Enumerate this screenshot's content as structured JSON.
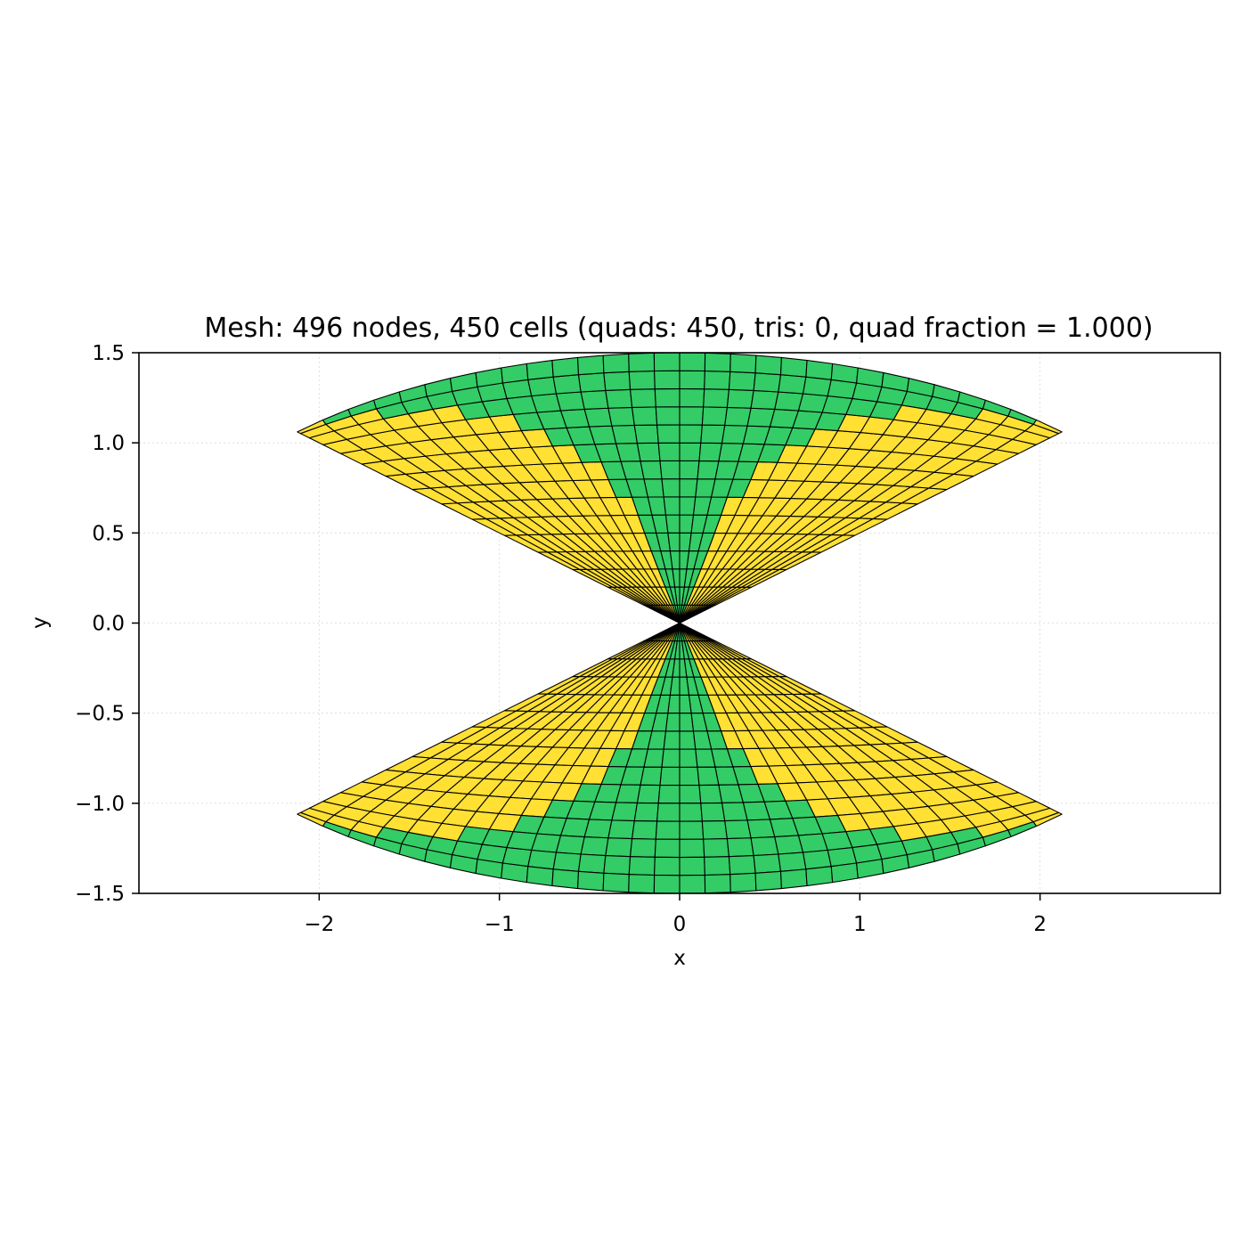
{
  "chart_data": {
    "type": "mesh",
    "title": "Mesh: 496 nodes, 450 cells (quads: 450, tris: 0, quad fraction = 1.000)",
    "xlabel": "x",
    "ylabel": "y",
    "xlim": [
      -3.0,
      3.0
    ],
    "ylim": [
      -1.5,
      1.5
    ],
    "xticks": [
      -2,
      -1,
      0,
      1,
      2
    ],
    "xtick_labels": [
      "−2",
      "−1",
      "0",
      "1",
      "2"
    ],
    "yticks": [
      -1.5,
      -1.0,
      -0.5,
      0.0,
      0.5,
      1.0,
      1.5
    ],
    "ytick_labels": [
      "−1.5",
      "−1.0",
      "−0.5",
      "0.0",
      "0.5",
      "1.0",
      "1.5"
    ],
    "grid": true,
    "domain": {
      "shape": "ellipse",
      "semi_axis_x": 3.0,
      "semi_axis_y": 1.5
    },
    "mesh": {
      "nodes": 496,
      "cells": 450,
      "quads": 450,
      "tris": 0,
      "quad_fraction": 1.0,
      "radial_divisions": 15,
      "angular_divisions": 30
    },
    "colors": {
      "quad_fill_regular": "#33cc66",
      "quad_fill_skewed": "#ffe033",
      "edge": "#000000",
      "grid": "#d9d9d9"
    }
  }
}
